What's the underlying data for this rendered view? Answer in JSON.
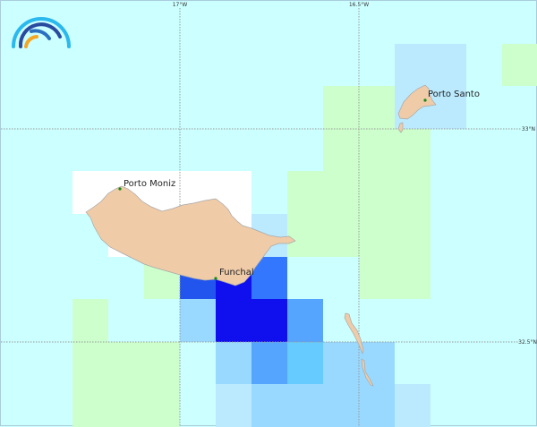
{
  "map": {
    "graticule": {
      "lon_labels": [
        "17°W",
        "16.5°W"
      ],
      "lat_labels": [
        "33°N",
        "32.5°N"
      ]
    },
    "places": [
      {
        "name": "Porto Moniz"
      },
      {
        "name": "Funchal"
      },
      {
        "name": "Porto Santo"
      }
    ],
    "legend_colors": {
      ".": "#ccffff",
      "g": "#ccffcc",
      "w": "#ffffff",
      "a": "#bbeaff",
      "b": "#99d9ff",
      "c": "#66ccff",
      "d": "#55a5ff",
      "e": "#3377ff",
      "f": "#2255ee",
      "h": "#1010ee"
    },
    "grid": [
      "...............",
      "...........aa.g",
      ".........ggaa..",
      ".........ggg...",
      "..wwwww.gggg...",
      "...wwwwagggg...",
      "....gfhe..gg...",
      "..g..bhhd......",
      "..ggg.bdcbb....",
      "..ggg.abbbba..."
    ],
    "land_color": "#efcba8"
  }
}
